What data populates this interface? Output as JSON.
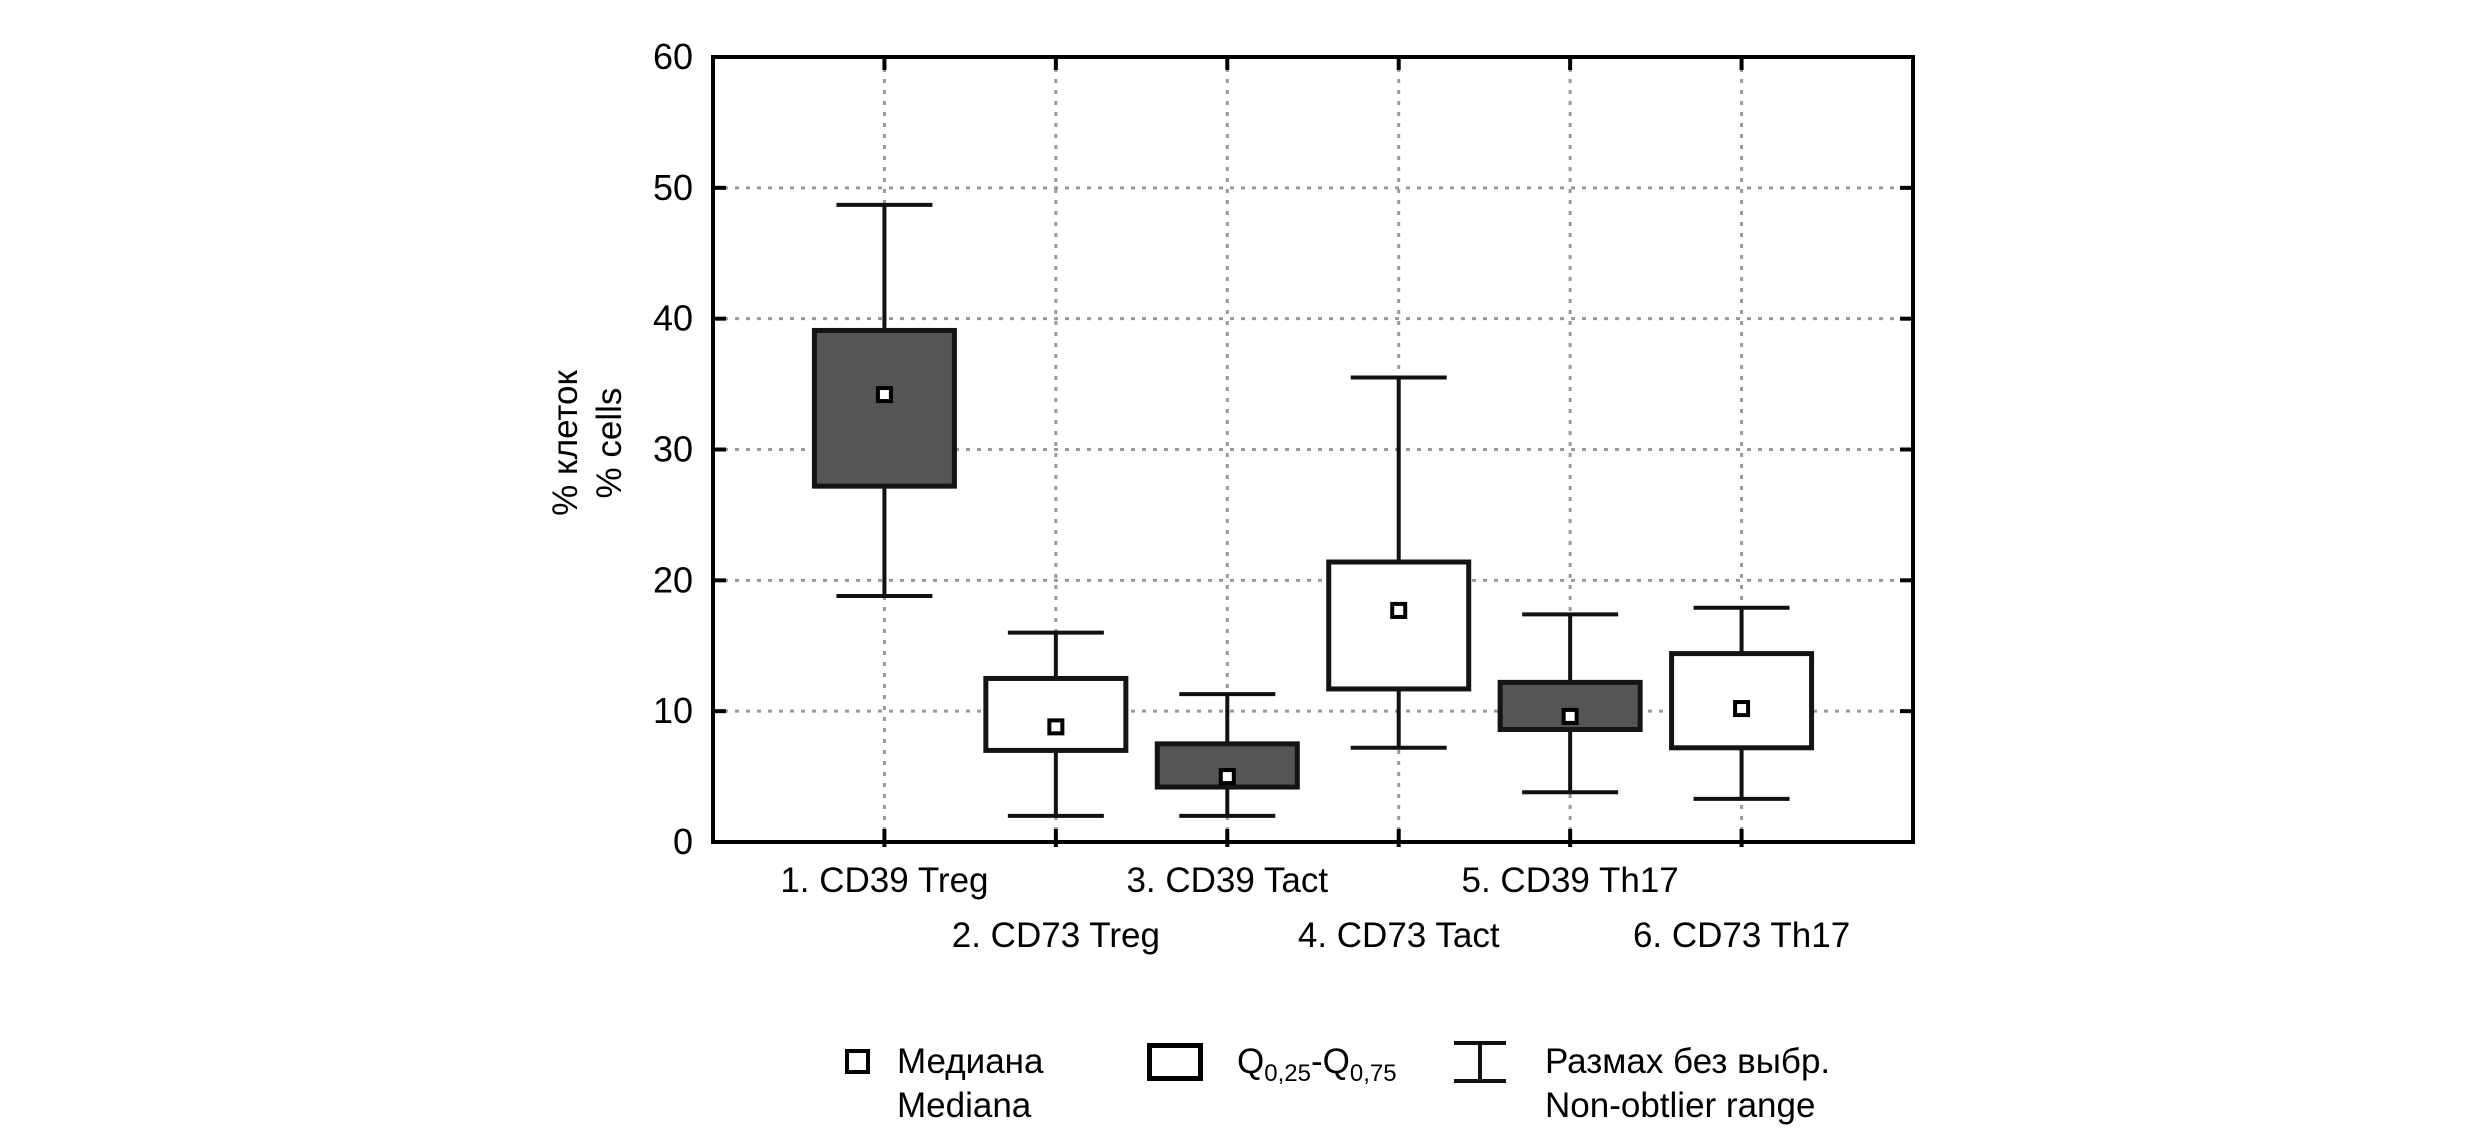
{
  "chart_data": {
    "type": "box",
    "title": "",
    "ylabel_lines": [
      "% клеток",
      "% cells"
    ],
    "xlabel": "",
    "ylim": [
      0,
      60
    ],
    "yticks": [
      0,
      10,
      20,
      30,
      40,
      50,
      60
    ],
    "grid": {
      "horizontal": "dotted at 10,20,30,40,50",
      "vertical": "dotted at each category center"
    },
    "legend_position": "bottom",
    "categories": [
      "1. CD39 Treg",
      "2. CD73 Treg",
      "3. CD39 Tact",
      "4. CD73 Tact",
      "5. CD39 Th17",
      "6. CD73 Th17"
    ],
    "series": [
      {
        "category": "1. CD39 Treg",
        "low": 18.8,
        "q1": 27.2,
        "median": 34.2,
        "q3": 39.1,
        "high": 48.7,
        "fill": "dark"
      },
      {
        "category": "2. CD73 Treg",
        "low": 2.0,
        "q1": 7.0,
        "median": 8.8,
        "q3": 12.5,
        "high": 16.0,
        "fill": "white"
      },
      {
        "category": "3. CD39 Tact",
        "low": 2.0,
        "q1": 4.2,
        "median": 5.0,
        "q3": 7.5,
        "high": 11.3,
        "fill": "dark"
      },
      {
        "category": "4. CD73 Tact",
        "low": 7.2,
        "q1": 11.7,
        "median": 17.7,
        "q3": 21.4,
        "high": 35.5,
        "fill": "white"
      },
      {
        "category": "5. CD39 Th17",
        "low": 3.8,
        "q1": 8.6,
        "median": 9.6,
        "q3": 12.2,
        "high": 17.4,
        "fill": "dark"
      },
      {
        "category": "6. CD73 Th17",
        "low": 3.3,
        "q1": 7.2,
        "median": 10.2,
        "q3": 14.4,
        "high": 17.9,
        "fill": "white"
      }
    ],
    "colors": {
      "dark_box_fill": "#555555",
      "white_box_fill": "#ffffff",
      "line_stroke": "#000000",
      "gridline": "#9a9a9a",
      "background": "#ffffff"
    }
  },
  "legend": {
    "median": {
      "symbol": "small-square-marker",
      "label_ru": "Медиана",
      "label_en": "Mediana"
    },
    "iqr": {
      "symbol": "box-outline",
      "base1": "Q",
      "sub1": "0,25",
      "dash": "-",
      "base2": "Q",
      "sub2": "0,75"
    },
    "range": {
      "symbol": "whisker-range",
      "label_ru": "Размах без выбр.",
      "label_en": "Non-obtlier range"
    }
  }
}
